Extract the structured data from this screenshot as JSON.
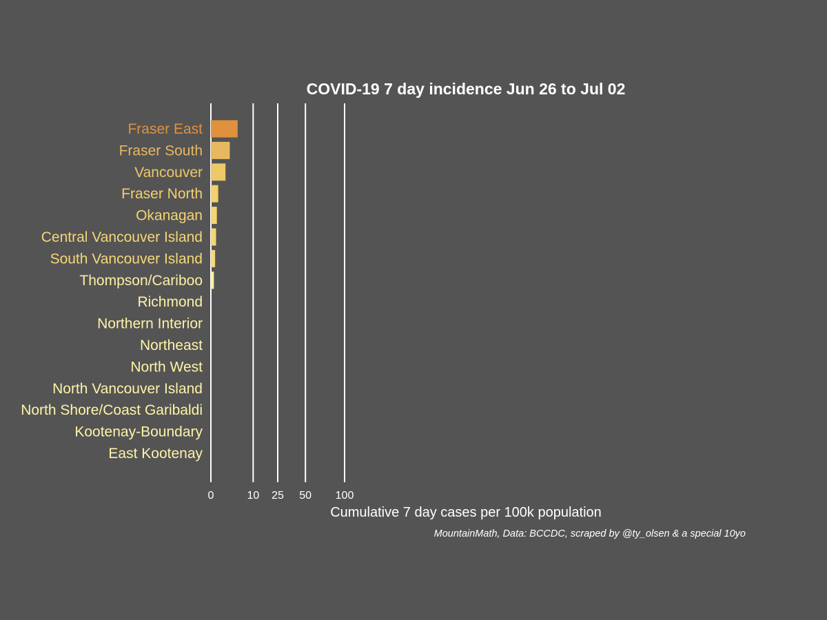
{
  "chart_data": {
    "type": "bar",
    "orientation": "horizontal",
    "title": "COVID-19 7 day incidence Jun 26 to Jul 02",
    "xlabel": "Cumulative 7 day cases per 100k population",
    "ylabel": "",
    "caption": "MountainMath, Data: BCCDC, scraped by @ty_olsen & a special 10yo",
    "x_scale": "sqrt",
    "xticks": [
      0,
      10,
      25,
      50,
      100
    ],
    "xtick_labels": [
      "0",
      "10",
      "25",
      "50",
      "100"
    ],
    "xlim": [
      0,
      1000
    ],
    "grid": "vertical lines at ticks",
    "legend": "none",
    "categories": [
      "Fraser East",
      "Fraser South",
      "Vancouver",
      "Fraser North",
      "Okanagan",
      "Central Vancouver Island",
      "South Vancouver Island",
      "Thompson/Cariboo",
      "Richmond",
      "Northern Interior",
      "Northeast",
      "North West",
      "North Vancouver Island",
      "North Shore/Coast Garibaldi",
      "Kootenay-Boundary",
      "East Kootenay"
    ],
    "values": [
      4.0,
      2.0,
      1.2,
      0.3,
      0.2,
      0.15,
      0.1,
      0.05,
      0,
      0,
      0,
      0,
      0,
      0,
      0,
      0
    ],
    "colors": [
      "#e0913e",
      "#e8b860",
      "#ecc867",
      "#f3d06c",
      "#f5d471",
      "#f6d673",
      "#f7d876",
      "#fcf0a4",
      "#fef3a8",
      "#fef3a8",
      "#fef3a8",
      "#fef3a8",
      "#fef3a8",
      "#fef3a8",
      "#fef3a8",
      "#fef3a8"
    ],
    "background_color": "#545454",
    "grid_color": "#ffffff"
  }
}
